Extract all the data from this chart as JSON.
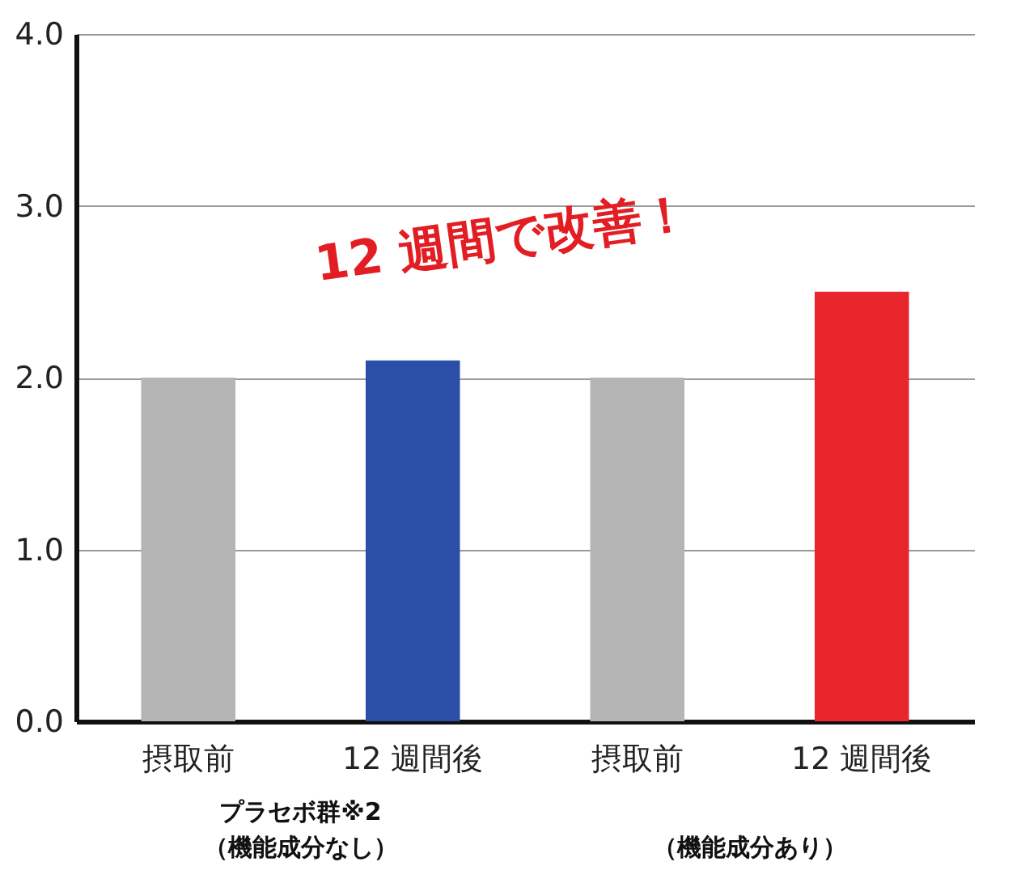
{
  "chart_data": {
    "type": "bar",
    "categories": [
      "摂取前",
      "12 週間後",
      "摂取前",
      "12 週間後"
    ],
    "values": [
      2.0,
      2.1,
      2.0,
      2.5
    ],
    "colors": [
      "#b5b5b5",
      "#2b4ea6",
      "#b5b5b5",
      "#e8262b"
    ],
    "ylim": [
      0,
      4
    ],
    "yticks": [
      {
        "value": 0,
        "label": "0.0"
      },
      {
        "value": 1,
        "label": "1.0"
      },
      {
        "value": 2,
        "label": "2.0"
      },
      {
        "value": 3,
        "label": "3.0"
      },
      {
        "value": 4,
        "label": "4.0"
      }
    ],
    "grid": "y",
    "annotations": [
      "12 週間で改善！",
      "プラセボ群※2",
      "（機能成分なし）",
      "（機能成分あり）"
    ]
  }
}
